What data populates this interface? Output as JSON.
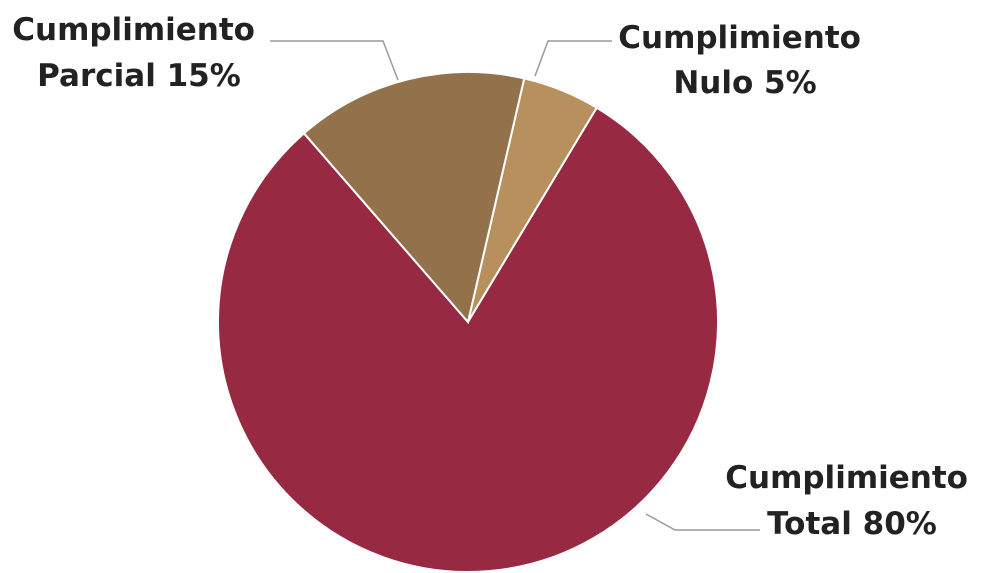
{
  "chart_data": {
    "type": "pie",
    "slices": [
      {
        "label_line1": "Cumplimiento",
        "label_line2": "Nulo 5%",
        "value": 5,
        "color": "#b8905e"
      },
      {
        "label_line1": "Cumplimiento",
        "label_line2": "Total 80%",
        "value": 80,
        "color": "#972942"
      },
      {
        "label_line1": "Cumplimiento",
        "label_line2": "Parcial 15%",
        "value": 15,
        "color": "#93714a"
      }
    ],
    "start_angle_deg": 13,
    "direction": "clockwise",
    "legend": "none"
  }
}
